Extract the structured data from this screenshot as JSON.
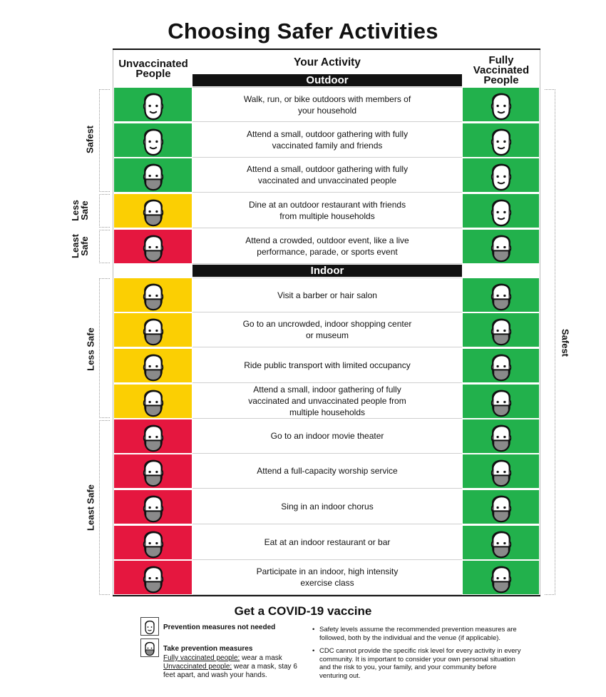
{
  "title": "Choosing Safer Activities",
  "headers": {
    "unvaccinated": "Unvaccinated People",
    "activity": "Your Activity",
    "vaccinated": "Fully Vaccinated People"
  },
  "sections": {
    "outdoor": "Outdoor",
    "indoor": "Indoor"
  },
  "rows": [
    {
      "activity": "Walk, run, or bike outdoors with members of your household",
      "unvaccinated": {
        "level": "green",
        "mask": false
      },
      "vaccinated": {
        "level": "green",
        "mask": false
      }
    },
    {
      "activity": "Attend a small, outdoor gathering with fully vaccinated family and friends",
      "unvaccinated": {
        "level": "green",
        "mask": false
      },
      "vaccinated": {
        "level": "green",
        "mask": false
      }
    },
    {
      "activity": "Attend a small, outdoor gathering with fully vaccinated and unvaccinated people",
      "unvaccinated": {
        "level": "green",
        "mask": true
      },
      "vaccinated": {
        "level": "green",
        "mask": false
      }
    },
    {
      "activity": "Dine at an outdoor restaurant with friends from multiple households",
      "unvaccinated": {
        "level": "yellow",
        "mask": true
      },
      "vaccinated": {
        "level": "green",
        "mask": false
      }
    },
    {
      "activity": "Attend a crowded, outdoor event, like a live performance, parade, or sports event",
      "unvaccinated": {
        "level": "red",
        "mask": true
      },
      "vaccinated": {
        "level": "green",
        "mask": true
      }
    },
    {
      "activity": "Visit a barber or hair salon",
      "unvaccinated": {
        "level": "yellow",
        "mask": true
      },
      "vaccinated": {
        "level": "green",
        "mask": true
      }
    },
    {
      "activity": "Go to an uncrowded, indoor shopping center or museum",
      "unvaccinated": {
        "level": "yellow",
        "mask": true
      },
      "vaccinated": {
        "level": "green",
        "mask": true
      }
    },
    {
      "activity": "Ride public transport with limited occupancy",
      "unvaccinated": {
        "level": "yellow",
        "mask": true
      },
      "vaccinated": {
        "level": "green",
        "mask": true
      }
    },
    {
      "activity": "Attend a small, indoor gathering of fully vaccinated and unvaccinated people from multiple households",
      "unvaccinated": {
        "level": "yellow",
        "mask": true
      },
      "vaccinated": {
        "level": "green",
        "mask": true
      }
    },
    {
      "activity": "Go to an indoor movie theater",
      "unvaccinated": {
        "level": "red",
        "mask": true
      },
      "vaccinated": {
        "level": "green",
        "mask": true
      }
    },
    {
      "activity": "Attend a full-capacity worship service",
      "unvaccinated": {
        "level": "red",
        "mask": true
      },
      "vaccinated": {
        "level": "green",
        "mask": true
      }
    },
    {
      "activity": "Sing in an indoor chorus",
      "unvaccinated": {
        "level": "red",
        "mask": true
      },
      "vaccinated": {
        "level": "green",
        "mask": true
      }
    },
    {
      "activity": "Eat at an indoor restaurant or bar",
      "unvaccinated": {
        "level": "red",
        "mask": true
      },
      "vaccinated": {
        "level": "green",
        "mask": true
      }
    },
    {
      "activity": "Participate in an indoor, high intensity exercise class",
      "unvaccinated": {
        "level": "red",
        "mask": true
      },
      "vaccinated": {
        "level": "green",
        "mask": true
      }
    }
  ],
  "left_brackets": {
    "safest": "Safest",
    "less_safe_outdoor": "Less Safe",
    "least_safe_outdoor": "Least Safe",
    "less_safe_indoor": "Less Safe",
    "least_safe_indoor": "Least Safe"
  },
  "right_bracket": "Safest",
  "footer": {
    "cta": "Get a COVID-19 vaccine",
    "legend_no_measures": "Prevention measures not needed",
    "legend_take_measures": "Take prevention measures",
    "legend_vaccinated_label": "Fully vaccinated people:",
    "legend_vaccinated_text": " wear a mask",
    "legend_unvaccinated_label": "Unvaccinated people:",
    "legend_unvaccinated_text": " wear a mask, stay 6 feet apart, and wash your hands.",
    "note_1": "Safety levels assume the recommended prevention measures are followed, both by the individual and the venue (if applicable).",
    "note_2": "CDC cannot provide the specific risk level for every activity in every community. It is important to consider your own personal situation and the risk to you, your family, and your community before venturing out."
  },
  "colors": {
    "green": "#22b14c",
    "yellow": "#fbcf03",
    "red": "#e5173f",
    "black": "#111111"
  },
  "icons": {
    "face": "face-icon",
    "masked_face": "masked-face-icon"
  }
}
